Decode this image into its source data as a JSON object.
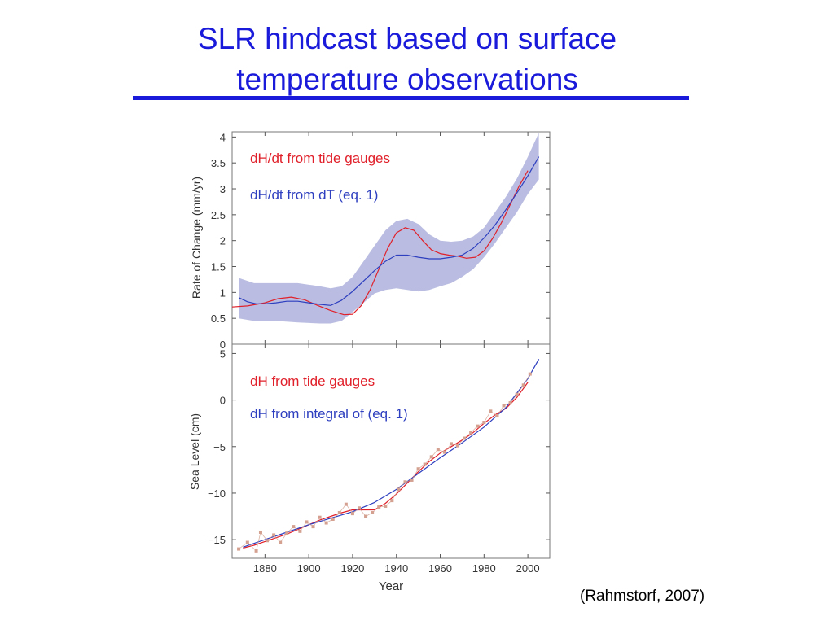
{
  "slide": {
    "title_line1": "SLR hindcast based on  surface",
    "title_line2": "temperature observations",
    "citation": "(Rahmstorf, 2007)",
    "title_color": "#1a1adb"
  },
  "chart_data": [
    {
      "type": "line",
      "ylabel": "Rate of Change (mm/yr)",
      "ylim": [
        0,
        4.1
      ],
      "yticks": [
        0,
        0.5,
        1,
        1.5,
        2,
        2.5,
        3,
        3.5,
        4
      ],
      "ytick_labels": [
        "0",
        "0.5",
        "1",
        "1.5",
        "2",
        "2.5",
        "3",
        "3.5",
        "4"
      ],
      "xlim": [
        1865,
        2010
      ],
      "xticks": [
        1880,
        1900,
        1920,
        1940,
        1960,
        1980,
        2000
      ],
      "legend": "top-left",
      "series": [
        {
          "name": "dH/dt from tide gauges",
          "color": "#e0202a",
          "x": [
            1865,
            1872,
            1880,
            1886,
            1892,
            1898,
            1904,
            1910,
            1916,
            1920,
            1924,
            1928,
            1932,
            1936,
            1940,
            1944,
            1948,
            1952,
            1956,
            1960,
            1964,
            1968,
            1972,
            1976,
            1980,
            1984,
            1988,
            1992,
            1996,
            2000
          ],
          "y": [
            0.72,
            0.74,
            0.8,
            0.88,
            0.91,
            0.86,
            0.75,
            0.65,
            0.57,
            0.58,
            0.75,
            1.05,
            1.45,
            1.85,
            2.15,
            2.25,
            2.2,
            2.0,
            1.82,
            1.75,
            1.72,
            1.7,
            1.66,
            1.68,
            1.8,
            2.05,
            2.35,
            2.7,
            3.05,
            3.35
          ]
        },
        {
          "name": "dH/dt from dT (eq. 1)",
          "color": "#2e3fbf",
          "x": [
            1868,
            1872,
            1876,
            1880,
            1885,
            1890,
            1895,
            1900,
            1905,
            1910,
            1915,
            1920,
            1925,
            1930,
            1935,
            1940,
            1945,
            1950,
            1955,
            1960,
            1965,
            1970,
            1975,
            1980,
            1985,
            1990,
            1995,
            2000,
            2005
          ],
          "y": [
            0.9,
            0.82,
            0.78,
            0.78,
            0.8,
            0.83,
            0.83,
            0.8,
            0.77,
            0.75,
            0.85,
            1.02,
            1.22,
            1.42,
            1.6,
            1.72,
            1.72,
            1.68,
            1.65,
            1.65,
            1.68,
            1.72,
            1.85,
            2.05,
            2.3,
            2.6,
            2.92,
            3.25,
            3.62
          ]
        }
      ],
      "band": {
        "name": "uncertainty",
        "color": "#9fa3d6",
        "x": [
          1868,
          1875,
          1885,
          1895,
          1905,
          1910,
          1915,
          1920,
          1925,
          1930,
          1935,
          1940,
          1945,
          1950,
          1955,
          1960,
          1965,
          1970,
          1975,
          1980,
          1985,
          1990,
          1995,
          2000,
          2005
        ],
        "upper": [
          1.28,
          1.18,
          1.18,
          1.18,
          1.12,
          1.08,
          1.12,
          1.3,
          1.6,
          1.9,
          2.2,
          2.38,
          2.42,
          2.32,
          2.12,
          2.0,
          1.98,
          2.0,
          2.08,
          2.25,
          2.55,
          2.85,
          3.2,
          3.62,
          4.08
        ],
        "lower": [
          0.5,
          0.45,
          0.45,
          0.42,
          0.4,
          0.4,
          0.45,
          0.62,
          0.8,
          0.98,
          1.05,
          1.08,
          1.05,
          1.02,
          1.05,
          1.12,
          1.18,
          1.3,
          1.45,
          1.68,
          1.95,
          2.25,
          2.55,
          2.9,
          3.18
        ]
      }
    },
    {
      "type": "line",
      "ylabel": "Sea Level (cm)",
      "xlabel": "Year",
      "ylim": [
        -17,
        6
      ],
      "yticks": [
        -15,
        -10,
        -5,
        0,
        5
      ],
      "ytick_labels": [
        "−15",
        "−10",
        "−5",
        "0",
        "5"
      ],
      "xlim": [
        1865,
        2010
      ],
      "xticks": [
        1880,
        1900,
        1920,
        1940,
        1960,
        1980,
        2000
      ],
      "xtick_labels": [
        "1880",
        "1900",
        "1920",
        "1940",
        "1960",
        "1980",
        "2000"
      ],
      "legend": "top-left",
      "series": [
        {
          "name": "dH from tide gauges",
          "color": "#e0202a",
          "x": [
            1870,
            1875,
            1880,
            1885,
            1890,
            1895,
            1900,
            1905,
            1910,
            1915,
            1920,
            1925,
            1930,
            1935,
            1940,
            1945,
            1950,
            1955,
            1960,
            1965,
            1970,
            1975,
            1980,
            1985,
            1990,
            1995,
            2000
          ],
          "y": [
            -15.9,
            -15.6,
            -15.2,
            -14.8,
            -14.4,
            -13.9,
            -13.4,
            -12.9,
            -12.5,
            -12.1,
            -11.8,
            -11.8,
            -11.8,
            -11.1,
            -10.1,
            -8.9,
            -7.7,
            -6.6,
            -5.7,
            -5.0,
            -4.3,
            -3.5,
            -2.5,
            -1.6,
            -0.9,
            0.3,
            1.9
          ]
        },
        {
          "name": "dH from integral of (eq. 1)",
          "color": "#2e3fbf",
          "x": [
            1870,
            1880,
            1890,
            1900,
            1910,
            1920,
            1930,
            1940,
            1950,
            1960,
            1970,
            1980,
            1990,
            2000,
            2005
          ],
          "y": [
            -15.8,
            -15.0,
            -14.2,
            -13.4,
            -12.7,
            -12.0,
            -11.0,
            -9.6,
            -7.9,
            -6.2,
            -4.6,
            -2.9,
            -0.8,
            2.3,
            4.4
          ]
        },
        {
          "name": "annual tide gauge values",
          "color": "#d4a090",
          "x": [
            1868,
            1872,
            1876,
            1878,
            1881,
            1884,
            1887,
            1890,
            1893,
            1896,
            1899,
            1902,
            1905,
            1908,
            1911,
            1914,
            1917,
            1920,
            1923,
            1926,
            1929,
            1932,
            1935,
            1938,
            1941,
            1944,
            1947,
            1950,
            1953,
            1956,
            1959,
            1962,
            1965,
            1968,
            1971,
            1974,
            1977,
            1980,
            1983,
            1986,
            1989,
            1992,
            1995,
            1998,
            2001
          ],
          "y": [
            -16.0,
            -15.3,
            -16.2,
            -14.2,
            -15.1,
            -14.5,
            -15.3,
            -14.3,
            -13.6,
            -14.1,
            -13.1,
            -13.6,
            -12.6,
            -13.2,
            -12.8,
            -12.1,
            -11.2,
            -12.2,
            -11.6,
            -12.5,
            -12.1,
            -11.5,
            -11.4,
            -10.8,
            -9.6,
            -8.8,
            -8.6,
            -7.4,
            -6.9,
            -6.1,
            -5.3,
            -5.6,
            -4.7,
            -4.9,
            -4.1,
            -3.5,
            -2.8,
            -2.4,
            -1.2,
            -1.7,
            -0.6,
            -0.3,
            0.6,
            1.6,
            2.8
          ]
        }
      ]
    }
  ]
}
